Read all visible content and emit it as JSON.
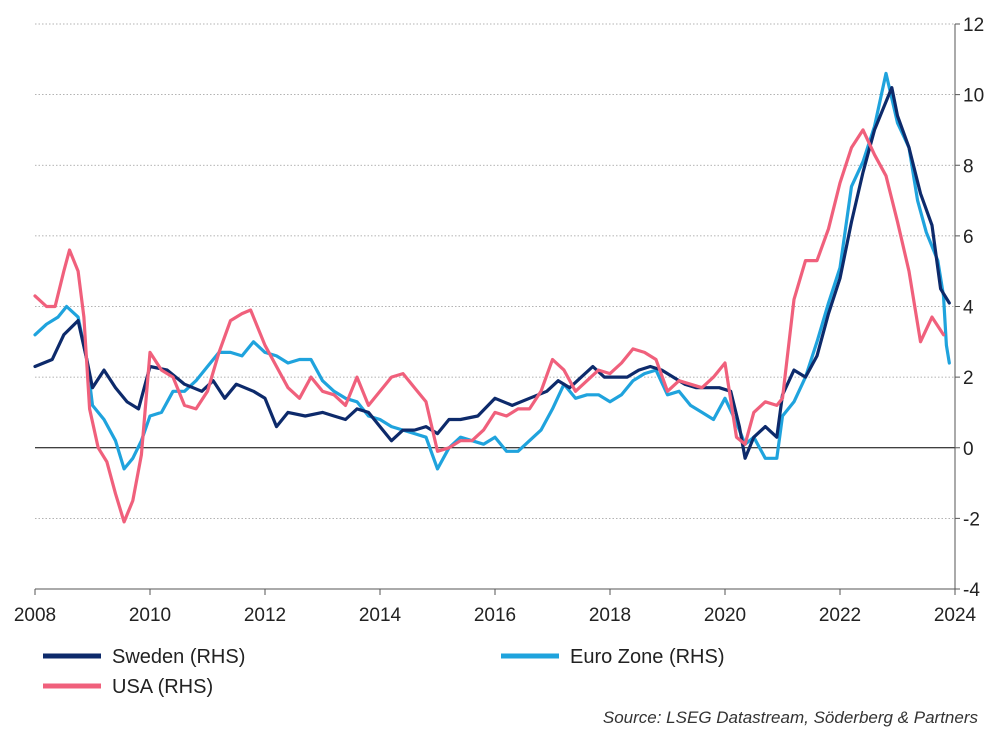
{
  "chart_data": {
    "type": "line",
    "title": "",
    "xlabel": "",
    "ylabel": "",
    "xlim": [
      2008,
      2024
    ],
    "ylim": [
      -4,
      12
    ],
    "x_ticks": [
      2008,
      2010,
      2012,
      2014,
      2016,
      2018,
      2020,
      2022,
      2024
    ],
    "y_ticks": [
      12,
      10,
      8,
      6,
      4,
      2,
      0,
      -2,
      -4
    ],
    "y_axis_side": "right",
    "grid": "horizontal dotted",
    "legend_position": "bottom",
    "series": [
      {
        "name": "Sweden (RHS)",
        "color": "#0d2a6b",
        "points": [
          [
            2008.0,
            2.3
          ],
          [
            2008.3,
            2.5
          ],
          [
            2008.5,
            3.2
          ],
          [
            2008.75,
            3.6
          ],
          [
            2008.9,
            2.5
          ],
          [
            2009.0,
            1.7
          ],
          [
            2009.2,
            2.2
          ],
          [
            2009.4,
            1.7
          ],
          [
            2009.6,
            1.3
          ],
          [
            2009.8,
            1.1
          ],
          [
            2010.0,
            2.3
          ],
          [
            2010.3,
            2.2
          ],
          [
            2010.6,
            1.8
          ],
          [
            2010.9,
            1.6
          ],
          [
            2011.1,
            1.9
          ],
          [
            2011.3,
            1.4
          ],
          [
            2011.5,
            1.8
          ],
          [
            2011.8,
            1.6
          ],
          [
            2012.0,
            1.4
          ],
          [
            2012.2,
            0.6
          ],
          [
            2012.4,
            1.0
          ],
          [
            2012.7,
            0.9
          ],
          [
            2013.0,
            1.0
          ],
          [
            2013.2,
            0.9
          ],
          [
            2013.4,
            0.8
          ],
          [
            2013.6,
            1.1
          ],
          [
            2013.8,
            1.0
          ],
          [
            2014.0,
            0.6
          ],
          [
            2014.2,
            0.2
          ],
          [
            2014.4,
            0.5
          ],
          [
            2014.6,
            0.5
          ],
          [
            2014.8,
            0.6
          ],
          [
            2015.0,
            0.4
          ],
          [
            2015.2,
            0.8
          ],
          [
            2015.4,
            0.8
          ],
          [
            2015.7,
            0.9
          ],
          [
            2016.0,
            1.4
          ],
          [
            2016.3,
            1.2
          ],
          [
            2016.6,
            1.4
          ],
          [
            2016.9,
            1.6
          ],
          [
            2017.1,
            1.9
          ],
          [
            2017.3,
            1.7
          ],
          [
            2017.5,
            2.0
          ],
          [
            2017.7,
            2.3
          ],
          [
            2017.9,
            2.0
          ],
          [
            2018.1,
            2.0
          ],
          [
            2018.3,
            2.0
          ],
          [
            2018.5,
            2.2
          ],
          [
            2018.7,
            2.3
          ],
          [
            2018.9,
            2.2
          ],
          [
            2019.1,
            2.0
          ],
          [
            2019.3,
            1.8
          ],
          [
            2019.5,
            1.7
          ],
          [
            2019.7,
            1.7
          ],
          [
            2019.9,
            1.7
          ],
          [
            2020.1,
            1.6
          ],
          [
            2020.25,
            0.6
          ],
          [
            2020.35,
            -0.3
          ],
          [
            2020.5,
            0.3
          ],
          [
            2020.7,
            0.6
          ],
          [
            2020.9,
            0.3
          ],
          [
            2021.0,
            1.5
          ],
          [
            2021.2,
            2.2
          ],
          [
            2021.4,
            2.0
          ],
          [
            2021.6,
            2.6
          ],
          [
            2021.8,
            3.8
          ],
          [
            2022.0,
            4.8
          ],
          [
            2022.2,
            6.4
          ],
          [
            2022.4,
            7.8
          ],
          [
            2022.6,
            9.0
          ],
          [
            2022.75,
            9.6
          ],
          [
            2022.9,
            10.2
          ],
          [
            2023.0,
            9.4
          ],
          [
            2023.2,
            8.5
          ],
          [
            2023.4,
            7.2
          ],
          [
            2023.6,
            6.3
          ],
          [
            2023.75,
            4.5
          ],
          [
            2023.9,
            4.1
          ]
        ]
      },
      {
        "name": "Euro Zone (RHS)",
        "color": "#1fa3dd",
        "points": [
          [
            2008.0,
            3.2
          ],
          [
            2008.2,
            3.5
          ],
          [
            2008.4,
            3.7
          ],
          [
            2008.55,
            4.0
          ],
          [
            2008.75,
            3.7
          ],
          [
            2008.9,
            2.5
          ],
          [
            2009.0,
            1.2
          ],
          [
            2009.2,
            0.8
          ],
          [
            2009.4,
            0.2
          ],
          [
            2009.55,
            -0.6
          ],
          [
            2009.7,
            -0.3
          ],
          [
            2009.85,
            0.2
          ],
          [
            2010.0,
            0.9
          ],
          [
            2010.2,
            1.0
          ],
          [
            2010.4,
            1.6
          ],
          [
            2010.6,
            1.6
          ],
          [
            2010.8,
            1.9
          ],
          [
            2011.0,
            2.3
          ],
          [
            2011.2,
            2.7
          ],
          [
            2011.4,
            2.7
          ],
          [
            2011.6,
            2.6
          ],
          [
            2011.8,
            3.0
          ],
          [
            2012.0,
            2.7
          ],
          [
            2012.2,
            2.6
          ],
          [
            2012.4,
            2.4
          ],
          [
            2012.6,
            2.5
          ],
          [
            2012.8,
            2.5
          ],
          [
            2013.0,
            1.9
          ],
          [
            2013.2,
            1.6
          ],
          [
            2013.4,
            1.4
          ],
          [
            2013.6,
            1.3
          ],
          [
            2013.8,
            0.9
          ],
          [
            2014.0,
            0.8
          ],
          [
            2014.2,
            0.6
          ],
          [
            2014.4,
            0.5
          ],
          [
            2014.6,
            0.4
          ],
          [
            2014.8,
            0.3
          ],
          [
            2015.0,
            -0.6
          ],
          [
            2015.2,
            0.0
          ],
          [
            2015.4,
            0.3
          ],
          [
            2015.6,
            0.2
          ],
          [
            2015.8,
            0.1
          ],
          [
            2016.0,
            0.3
          ],
          [
            2016.2,
            -0.1
          ],
          [
            2016.4,
            -0.1
          ],
          [
            2016.6,
            0.2
          ],
          [
            2016.8,
            0.5
          ],
          [
            2017.0,
            1.1
          ],
          [
            2017.2,
            1.8
          ],
          [
            2017.4,
            1.4
          ],
          [
            2017.6,
            1.5
          ],
          [
            2017.8,
            1.5
          ],
          [
            2018.0,
            1.3
          ],
          [
            2018.2,
            1.5
          ],
          [
            2018.4,
            1.9
          ],
          [
            2018.6,
            2.1
          ],
          [
            2018.8,
            2.2
          ],
          [
            2019.0,
            1.5
          ],
          [
            2019.2,
            1.6
          ],
          [
            2019.4,
            1.2
          ],
          [
            2019.6,
            1.0
          ],
          [
            2019.8,
            0.8
          ],
          [
            2020.0,
            1.4
          ],
          [
            2020.2,
            0.7
          ],
          [
            2020.35,
            0.1
          ],
          [
            2020.5,
            0.3
          ],
          [
            2020.7,
            -0.3
          ],
          [
            2020.9,
            -0.3
          ],
          [
            2021.0,
            0.9
          ],
          [
            2021.2,
            1.3
          ],
          [
            2021.4,
            2.0
          ],
          [
            2021.6,
            3.0
          ],
          [
            2021.8,
            4.1
          ],
          [
            2022.0,
            5.1
          ],
          [
            2022.2,
            7.4
          ],
          [
            2022.4,
            8.1
          ],
          [
            2022.6,
            9.1
          ],
          [
            2022.8,
            10.6
          ],
          [
            2023.0,
            9.2
          ],
          [
            2023.2,
            8.5
          ],
          [
            2023.35,
            7.0
          ],
          [
            2023.5,
            6.1
          ],
          [
            2023.7,
            5.3
          ],
          [
            2023.8,
            4.3
          ],
          [
            2023.85,
            2.9
          ],
          [
            2023.9,
            2.4
          ]
        ]
      },
      {
        "name": "USA (RHS)",
        "color": "#f0607c",
        "points": [
          [
            2008.0,
            4.3
          ],
          [
            2008.2,
            4.0
          ],
          [
            2008.35,
            4.0
          ],
          [
            2008.5,
            5.0
          ],
          [
            2008.6,
            5.6
          ],
          [
            2008.75,
            5.0
          ],
          [
            2008.85,
            3.7
          ],
          [
            2008.95,
            1.1
          ],
          [
            2009.1,
            0.0
          ],
          [
            2009.25,
            -0.4
          ],
          [
            2009.4,
            -1.3
          ],
          [
            2009.55,
            -2.1
          ],
          [
            2009.7,
            -1.5
          ],
          [
            2009.85,
            -0.2
          ],
          [
            2010.0,
            2.7
          ],
          [
            2010.2,
            2.2
          ],
          [
            2010.4,
            2.0
          ],
          [
            2010.6,
            1.2
          ],
          [
            2010.8,
            1.1
          ],
          [
            2011.0,
            1.6
          ],
          [
            2011.2,
            2.7
          ],
          [
            2011.4,
            3.6
          ],
          [
            2011.6,
            3.8
          ],
          [
            2011.75,
            3.9
          ],
          [
            2012.0,
            2.9
          ],
          [
            2012.2,
            2.3
          ],
          [
            2012.4,
            1.7
          ],
          [
            2012.6,
            1.4
          ],
          [
            2012.8,
            2.0
          ],
          [
            2013.0,
            1.6
          ],
          [
            2013.2,
            1.5
          ],
          [
            2013.4,
            1.2
          ],
          [
            2013.6,
            2.0
          ],
          [
            2013.8,
            1.2
          ],
          [
            2014.0,
            1.6
          ],
          [
            2014.2,
            2.0
          ],
          [
            2014.4,
            2.1
          ],
          [
            2014.6,
            1.7
          ],
          [
            2014.8,
            1.3
          ],
          [
            2015.0,
            -0.1
          ],
          [
            2015.2,
            0.0
          ],
          [
            2015.4,
            0.2
          ],
          [
            2015.6,
            0.2
          ],
          [
            2015.8,
            0.5
          ],
          [
            2016.0,
            1.0
          ],
          [
            2016.2,
            0.9
          ],
          [
            2016.4,
            1.1
          ],
          [
            2016.6,
            1.1
          ],
          [
            2016.8,
            1.6
          ],
          [
            2017.0,
            2.5
          ],
          [
            2017.2,
            2.2
          ],
          [
            2017.4,
            1.6
          ],
          [
            2017.6,
            1.9
          ],
          [
            2017.8,
            2.2
          ],
          [
            2018.0,
            2.1
          ],
          [
            2018.2,
            2.4
          ],
          [
            2018.4,
            2.8
          ],
          [
            2018.6,
            2.7
          ],
          [
            2018.8,
            2.5
          ],
          [
            2019.0,
            1.6
          ],
          [
            2019.2,
            1.9
          ],
          [
            2019.4,
            1.8
          ],
          [
            2019.6,
            1.7
          ],
          [
            2019.8,
            2.0
          ],
          [
            2020.0,
            2.4
          ],
          [
            2020.2,
            0.3
          ],
          [
            2020.35,
            0.1
          ],
          [
            2020.5,
            1.0
          ],
          [
            2020.7,
            1.3
          ],
          [
            2020.9,
            1.2
          ],
          [
            2021.0,
            1.4
          ],
          [
            2021.2,
            4.2
          ],
          [
            2021.4,
            5.3
          ],
          [
            2021.6,
            5.3
          ],
          [
            2021.8,
            6.2
          ],
          [
            2022.0,
            7.5
          ],
          [
            2022.2,
            8.5
          ],
          [
            2022.4,
            9.0
          ],
          [
            2022.6,
            8.3
          ],
          [
            2022.8,
            7.7
          ],
          [
            2023.0,
            6.4
          ],
          [
            2023.2,
            5.0
          ],
          [
            2023.4,
            3.0
          ],
          [
            2023.6,
            3.7
          ],
          [
            2023.8,
            3.2
          ]
        ]
      }
    ]
  },
  "legend": [
    {
      "label": "Sweden (RHS)",
      "color": "#0d2a6b"
    },
    {
      "label": "Euro Zone (RHS)",
      "color": "#1fa3dd"
    },
    {
      "label": "USA (RHS)",
      "color": "#f0607c"
    }
  ],
  "source": "Source: LSEG Datastream, Söderberg & Partners"
}
